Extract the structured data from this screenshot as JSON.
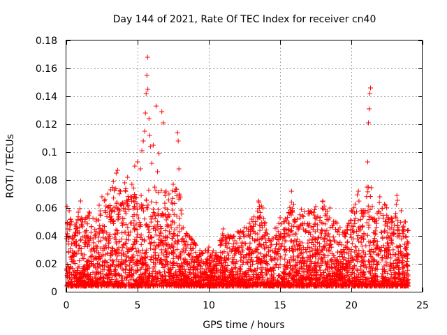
{
  "chart_data": {
    "type": "scatter",
    "title": "Day 144 of 2021, Rate Of TEC Index for receiver cn40",
    "xlabel": "GPS time / hours",
    "ylabel": "ROTI / TECUs",
    "xlim": [
      0,
      25
    ],
    "ylim": [
      0,
      0.18
    ],
    "xticks": [
      0,
      5,
      10,
      15,
      20,
      25
    ],
    "xtick_labels": [
      "0",
      "5",
      "10",
      "15",
      "20",
      "25"
    ],
    "yticks": [
      0,
      0.02,
      0.04,
      0.06,
      0.08,
      0.1,
      0.12,
      0.14,
      0.16,
      0.18
    ],
    "ytick_labels": [
      "0",
      "0.02",
      "0.04",
      "0.06",
      "0.08",
      "0.1",
      "0.12",
      "0.14",
      "0.16",
      "0.18"
    ],
    "grid": true,
    "marker": "+",
    "color": "#ff0000",
    "series": [
      {
        "values": [
          [
            0.05,
            0.061
          ],
          [
            0.1,
            0.045
          ],
          [
            0.2,
            0.058
          ],
          [
            0.3,
            0.052
          ],
          [
            0.6,
            0.048
          ],
          [
            1.0,
            0.065
          ],
          [
            1.1,
            0.052
          ],
          [
            1.6,
            0.057
          ],
          [
            2.1,
            0.052
          ],
          [
            2.3,
            0.062
          ],
          [
            2.5,
            0.068
          ],
          [
            2.9,
            0.07
          ],
          [
            3.1,
            0.073
          ],
          [
            3.3,
            0.079
          ],
          [
            3.5,
            0.085
          ],
          [
            3.6,
            0.087
          ],
          [
            3.8,
            0.072
          ],
          [
            3.9,
            0.063
          ],
          [
            4.1,
            0.078
          ],
          [
            4.3,
            0.082
          ],
          [
            4.5,
            0.068
          ],
          [
            4.6,
            0.077
          ],
          [
            4.8,
            0.09
          ],
          [
            5.0,
            0.093
          ],
          [
            5.2,
            0.088
          ],
          [
            5.3,
            0.101
          ],
          [
            5.4,
            0.108
          ],
          [
            5.5,
            0.115
          ],
          [
            5.55,
            0.128
          ],
          [
            5.6,
            0.142
          ],
          [
            5.65,
            0.155
          ],
          [
            5.7,
            0.168
          ],
          [
            5.72,
            0.145
          ],
          [
            5.8,
            0.124
          ],
          [
            5.85,
            0.112
          ],
          [
            5.9,
            0.104
          ],
          [
            6.0,
            0.092
          ],
          [
            6.1,
            0.105
          ],
          [
            6.3,
            0.133
          ],
          [
            6.4,
            0.086
          ],
          [
            6.5,
            0.099
          ],
          [
            6.7,
            0.129
          ],
          [
            6.8,
            0.121
          ],
          [
            7.0,
            0.072
          ],
          [
            7.2,
            0.07
          ],
          [
            7.5,
            0.077
          ],
          [
            7.8,
            0.114
          ],
          [
            7.85,
            0.108
          ],
          [
            7.9,
            0.088
          ],
          [
            8.2,
            0.046
          ],
          [
            9.0,
            0.035
          ],
          [
            9.5,
            0.028
          ],
          [
            10.0,
            0.032
          ],
          [
            10.5,
            0.028
          ],
          [
            11.0,
            0.045
          ],
          [
            11.5,
            0.04
          ],
          [
            12.0,
            0.043
          ],
          [
            12.5,
            0.046
          ],
          [
            13.0,
            0.052
          ],
          [
            13.5,
            0.065
          ],
          [
            13.8,
            0.06
          ],
          [
            14.2,
            0.038
          ],
          [
            15.0,
            0.053
          ],
          [
            15.3,
            0.05
          ],
          [
            15.8,
            0.072
          ],
          [
            16.2,
            0.052
          ],
          [
            16.5,
            0.059
          ],
          [
            17.0,
            0.058
          ],
          [
            17.5,
            0.061
          ],
          [
            18.0,
            0.065
          ],
          [
            18.5,
            0.06
          ],
          [
            19.0,
            0.049
          ],
          [
            19.6,
            0.042
          ],
          [
            20.0,
            0.058
          ],
          [
            20.5,
            0.072
          ],
          [
            20.7,
            0.058
          ],
          [
            21.1,
            0.075
          ],
          [
            21.15,
            0.093
          ],
          [
            21.2,
            0.121
          ],
          [
            21.25,
            0.131
          ],
          [
            21.3,
            0.142
          ],
          [
            21.35,
            0.146
          ],
          [
            21.5,
            0.052
          ],
          [
            22.0,
            0.068
          ],
          [
            22.4,
            0.062
          ],
          [
            22.8,
            0.053
          ],
          [
            23.2,
            0.069
          ],
          [
            23.5,
            0.058
          ],
          [
            23.8,
            0.05
          ],
          [
            24.0,
            0.044
          ]
        ]
      }
    ]
  }
}
